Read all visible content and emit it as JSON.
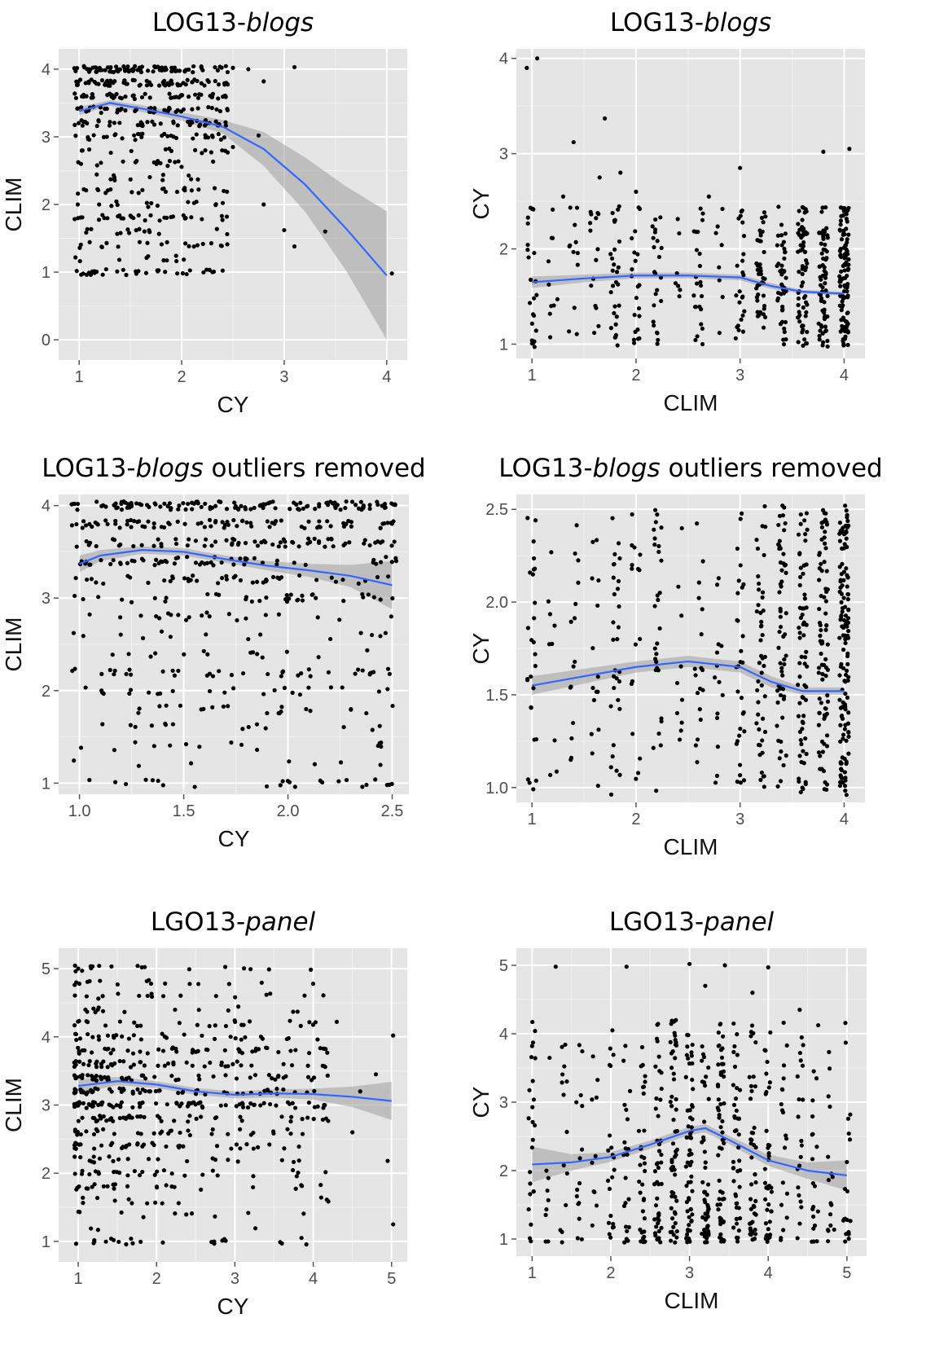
{
  "chart_data": [
    {
      "type": "scatter",
      "title": "LOG13-",
      "title_italic": "blogs",
      "title_suffix": "",
      "xlabel": "CY",
      "ylabel": "CLIM",
      "xlim": [
        0.8,
        4.2
      ],
      "ylim": [
        -0.3,
        4.3
      ],
      "xticks": [
        1,
        2,
        3,
        4
      ],
      "xtick_labels": [
        "1",
        "2",
        "3",
        "4"
      ],
      "yticks": [
        0,
        1,
        2,
        3,
        4
      ],
      "ytick_labels": [
        "0",
        "1",
        "2",
        "3",
        "4"
      ],
      "grid": true,
      "points": {
        "x_range": [
          0.95,
          2.45
        ],
        "y_levels": [
          1.0,
          1.2,
          1.4,
          1.6,
          1.8,
          2.0,
          2.2,
          2.4,
          2.6,
          2.8,
          3.0,
          3.2,
          3.4,
          3.6,
          3.8,
          4.0
        ],
        "y_weights": [
          3,
          1,
          2,
          2,
          3,
          2,
          3,
          1,
          2,
          2,
          4,
          5,
          6,
          7,
          9,
          12
        ],
        "count": 520
      },
      "extra_points": [
        [
          2.5,
          4.02
        ],
        [
          2.65,
          4.0
        ],
        [
          2.8,
          3.82
        ],
        [
          3.1,
          4.03
        ],
        [
          2.75,
          3.02
        ],
        [
          2.5,
          2.85
        ],
        [
          3.0,
          1.62
        ],
        [
          3.1,
          1.38
        ],
        [
          3.4,
          1.6
        ],
        [
          4.05,
          0.98
        ],
        [
          2.8,
          2.0
        ],
        [
          2.3,
          1.0
        ]
      ],
      "series": [
        {
          "type": "loess",
          "x": [
            1.0,
            1.3,
            1.6,
            2.0,
            2.4,
            2.8,
            3.2,
            3.6,
            4.0
          ],
          "y": [
            3.38,
            3.5,
            3.42,
            3.3,
            3.15,
            2.82,
            2.3,
            1.65,
            0.95
          ],
          "se": [
            0.06,
            0.04,
            0.05,
            0.06,
            0.1,
            0.25,
            0.4,
            0.62,
            0.95
          ]
        }
      ]
    },
    {
      "type": "scatter",
      "title": "LOG13-",
      "title_italic": "blogs",
      "title_suffix": "",
      "xlabel": "CLIM",
      "ylabel": "CY",
      "xlim": [
        0.85,
        4.2
      ],
      "ylim": [
        0.85,
        4.1
      ],
      "xticks": [
        1,
        2,
        3,
        4
      ],
      "xtick_labels": [
        "1",
        "2",
        "3",
        "4"
      ],
      "yticks": [
        1,
        2,
        3,
        4
      ],
      "ytick_labels": [
        "1",
        "2",
        "3",
        "4"
      ],
      "grid": true,
      "points": {
        "x_levels": [
          1.0,
          1.2,
          1.4,
          1.6,
          1.8,
          2.0,
          2.2,
          2.4,
          2.6,
          2.8,
          3.0,
          3.2,
          3.4,
          3.6,
          3.8,
          4.0
        ],
        "x_weights": [
          3,
          1,
          2,
          2,
          3,
          2,
          3,
          1,
          2,
          2,
          4,
          5,
          6,
          7,
          9,
          12
        ],
        "y_range": [
          0.97,
          2.45
        ],
        "count": 520
      },
      "extra_points": [
        [
          0.95,
          3.9
        ],
        [
          1.05,
          4.0
        ],
        [
          1.4,
          3.12
        ],
        [
          1.7,
          3.37
        ],
        [
          1.85,
          2.8
        ],
        [
          1.65,
          2.75
        ],
        [
          2.0,
          2.6
        ],
        [
          3.0,
          2.85
        ],
        [
          3.8,
          3.02
        ],
        [
          4.05,
          3.05
        ],
        [
          2.7,
          2.55
        ],
        [
          1.3,
          2.55
        ]
      ],
      "series": [
        {
          "type": "loess",
          "x": [
            1.0,
            1.5,
            2.0,
            2.5,
            3.0,
            3.3,
            3.6,
            4.0
          ],
          "y": [
            1.65,
            1.69,
            1.72,
            1.72,
            1.7,
            1.61,
            1.55,
            1.53
          ],
          "se": [
            0.06,
            0.04,
            0.03,
            0.03,
            0.03,
            0.03,
            0.02,
            0.02
          ]
        }
      ]
    },
    {
      "type": "scatter",
      "title": "LOG13-",
      "title_italic": "blogs",
      "title_suffix": " outliers removed",
      "xlabel": "CY",
      "ylabel": "CLIM",
      "xlim": [
        0.9,
        2.58
      ],
      "ylim": [
        0.88,
        4.12
      ],
      "xticks": [
        1.0,
        1.5,
        2.0,
        2.5
      ],
      "xtick_labels": [
        "1.0",
        "1.5",
        "2.0",
        "2.5"
      ],
      "yticks": [
        1,
        2,
        3,
        4
      ],
      "ytick_labels": [
        "1",
        "2",
        "3",
        "4"
      ],
      "grid": true,
      "points": {
        "x_range": [
          0.96,
          2.52
        ],
        "y_levels": [
          1.0,
          1.2,
          1.4,
          1.6,
          1.8,
          2.0,
          2.2,
          2.4,
          2.6,
          2.8,
          3.0,
          3.2,
          3.4,
          3.6,
          3.8,
          4.0
        ],
        "y_weights": [
          3,
          1,
          2,
          2,
          3,
          2,
          3,
          1,
          2,
          2,
          4,
          5,
          6,
          7,
          9,
          14
        ],
        "count": 600
      },
      "extra_points": [],
      "series": [
        {
          "type": "loess",
          "x": [
            1.0,
            1.1,
            1.3,
            1.5,
            1.7,
            1.9,
            2.1,
            2.3,
            2.5
          ],
          "y": [
            3.37,
            3.46,
            3.52,
            3.5,
            3.42,
            3.35,
            3.3,
            3.24,
            3.14
          ],
          "se": [
            0.09,
            0.06,
            0.04,
            0.04,
            0.04,
            0.05,
            0.07,
            0.12,
            0.26
          ]
        }
      ]
    },
    {
      "type": "scatter",
      "title": "LOG13-",
      "title_italic": "blogs",
      "title_suffix": " outliers removed",
      "xlabel": "CLIM",
      "ylabel": "CY",
      "xlim": [
        0.85,
        4.2
      ],
      "ylim": [
        0.92,
        2.58
      ],
      "xticks": [
        1,
        2,
        3,
        4
      ],
      "xtick_labels": [
        "1",
        "2",
        "3",
        "4"
      ],
      "yticks": [
        1.0,
        1.5,
        2.0,
        2.5
      ],
      "ytick_labels": [
        "1.0",
        "1.5",
        "2.0",
        "2.5"
      ],
      "grid": true,
      "points": {
        "x_levels": [
          1.0,
          1.2,
          1.4,
          1.6,
          1.8,
          2.0,
          2.2,
          2.4,
          2.6,
          2.8,
          3.0,
          3.2,
          3.4,
          3.6,
          3.8,
          4.0
        ],
        "x_weights": [
          3,
          1,
          2,
          2,
          3,
          2,
          3,
          1,
          2,
          2,
          4,
          5,
          6,
          7,
          9,
          14
        ],
        "y_range": [
          0.96,
          2.52
        ],
        "count": 600
      },
      "extra_points": [],
      "series": [
        {
          "type": "loess",
          "x": [
            1.0,
            1.5,
            2.0,
            2.5,
            3.0,
            3.3,
            3.6,
            4.0
          ],
          "y": [
            1.55,
            1.6,
            1.65,
            1.68,
            1.65,
            1.57,
            1.52,
            1.52
          ],
          "se": [
            0.05,
            0.04,
            0.03,
            0.03,
            0.03,
            0.03,
            0.02,
            0.02
          ]
        }
      ]
    },
    {
      "type": "scatter",
      "title": "LGO13-",
      "title_italic": "panel",
      "title_suffix": "",
      "xlabel": "CY",
      "ylabel": "CLIM",
      "xlim": [
        0.75,
        5.2
      ],
      "ylim": [
        0.7,
        5.3
      ],
      "xticks": [
        1,
        2,
        3,
        4,
        5
      ],
      "xtick_labels": [
        "1",
        "2",
        "3",
        "4",
        "5"
      ],
      "yticks": [
        1,
        2,
        3,
        4,
        5
      ],
      "ytick_labels": [
        "1",
        "2",
        "3",
        "4",
        "5"
      ],
      "grid": true,
      "points": {
        "x_range": [
          0.95,
          4.2
        ],
        "x_skew": 1.6,
        "y_levels": [
          1.0,
          1.2,
          1.4,
          1.6,
          1.8,
          2.0,
          2.2,
          2.4,
          2.6,
          2.8,
          3.0,
          3.2,
          3.4,
          3.6,
          3.8,
          4.0,
          4.2,
          4.4,
          4.6,
          4.8,
          5.0
        ],
        "y_weights": [
          2,
          1,
          1,
          2,
          2,
          3,
          3,
          4,
          5,
          6,
          8,
          6,
          7,
          6,
          5,
          5,
          3,
          2,
          2,
          2,
          2
        ],
        "count": 640
      },
      "extra_points": [
        [
          4.6,
          3.2
        ],
        [
          4.8,
          3.45
        ],
        [
          5.02,
          4.02
        ],
        [
          5.02,
          1.25
        ],
        [
          4.95,
          2.18
        ],
        [
          4.3,
          4.22
        ],
        [
          4.5,
          2.6
        ],
        [
          3.6,
          0.97
        ],
        [
          3.85,
          1.05
        ]
      ],
      "series": [
        {
          "type": "loess",
          "x": [
            1.0,
            1.5,
            2.0,
            2.5,
            3.0,
            3.5,
            4.0,
            4.5,
            5.0
          ],
          "y": [
            3.28,
            3.35,
            3.3,
            3.2,
            3.15,
            3.17,
            3.16,
            3.12,
            3.06
          ],
          "se": [
            0.1,
            0.06,
            0.05,
            0.05,
            0.05,
            0.06,
            0.08,
            0.15,
            0.28
          ]
        }
      ]
    },
    {
      "type": "scatter",
      "title": "LGO13-",
      "title_italic": "panel",
      "title_suffix": "",
      "xlabel": "CLIM",
      "ylabel": "CY",
      "xlim": [
        0.8,
        5.25
      ],
      "ylim": [
        0.75,
        5.25
      ],
      "xticks": [
        1,
        2,
        3,
        4,
        5
      ],
      "xtick_labels": [
        "1",
        "2",
        "3",
        "4",
        "5"
      ],
      "yticks": [
        1,
        2,
        3,
        4,
        5
      ],
      "ytick_labels": [
        "1",
        "2",
        "3",
        "4",
        "5"
      ],
      "grid": true,
      "points": {
        "x_levels": [
          1.0,
          1.2,
          1.4,
          1.6,
          1.8,
          2.0,
          2.2,
          2.4,
          2.6,
          2.8,
          3.0,
          3.2,
          3.4,
          3.6,
          3.8,
          4.0,
          4.2,
          4.4,
          4.6,
          4.8,
          5.0
        ],
        "x_weights": [
          2,
          1,
          1,
          2,
          2,
          3,
          3,
          4,
          5,
          6,
          8,
          6,
          7,
          6,
          5,
          5,
          3,
          2,
          2,
          2,
          2
        ],
        "y_range": [
          0.95,
          4.2
        ],
        "y_skew": 1.6,
        "count": 640
      },
      "extra_points": [
        [
          1.3,
          4.98
        ],
        [
          2.2,
          4.98
        ],
        [
          3.0,
          5.02
        ],
        [
          3.45,
          5.0
        ],
        [
          4.0,
          4.97
        ],
        [
          1.0,
          3.82
        ],
        [
          4.4,
          4.35
        ],
        [
          3.8,
          4.6
        ],
        [
          3.2,
          4.7
        ]
      ],
      "series": [
        {
          "type": "loess",
          "x": [
            1.0,
            1.5,
            2.0,
            2.5,
            3.0,
            3.2,
            3.5,
            4.0,
            4.5,
            5.0
          ],
          "y": [
            2.09,
            2.12,
            2.2,
            2.38,
            2.58,
            2.62,
            2.45,
            2.15,
            2.0,
            1.93
          ],
          "se": [
            0.26,
            0.12,
            0.07,
            0.06,
            0.06,
            0.06,
            0.06,
            0.08,
            0.12,
            0.22
          ]
        }
      ]
    }
  ]
}
